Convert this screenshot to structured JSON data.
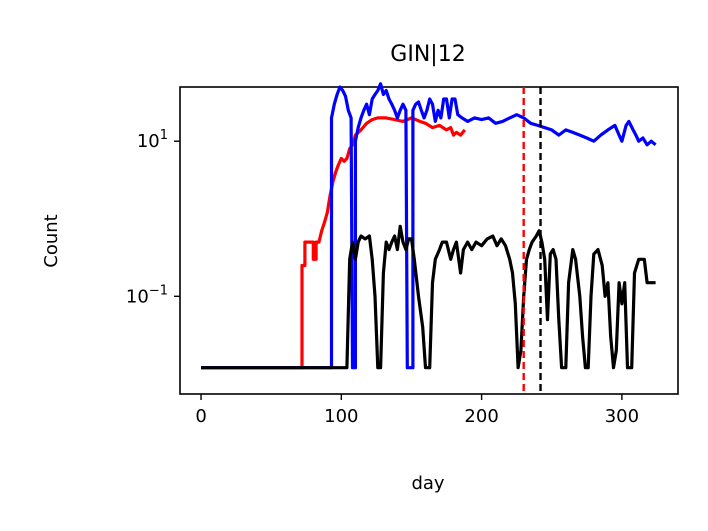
{
  "chart_data": {
    "type": "line",
    "title": "GIN|12",
    "xlabel": "day",
    "ylabel": "Count",
    "xlim": [
      -15,
      340
    ],
    "xticks": [
      0,
      100,
      200,
      300
    ],
    "yscale": "log",
    "ylim": [
      0.0055,
      50
    ],
    "yticks": [
      {
        "value": 10,
        "base": "10",
        "exp": "1"
      },
      {
        "value": 0.1,
        "base": "10",
        "exp": "−1"
      }
    ],
    "grid": false,
    "vlines": [
      {
        "x": 230,
        "color": "#ff0000",
        "style": "dashed"
      },
      {
        "x": 242,
        "color": "#000000",
        "style": "dashed"
      }
    ],
    "series": [
      {
        "color": "#ff0000",
        "points": [
          [
            0,
            0.012
          ],
          [
            72,
            0.012
          ],
          [
            72,
            0.25
          ],
          [
            74,
            0.25
          ],
          [
            74,
            0.5
          ],
          [
            80,
            0.5
          ],
          [
            80,
            0.3
          ],
          [
            82,
            0.3
          ],
          [
            82,
            0.5
          ],
          [
            84,
            0.5
          ],
          [
            86,
            0.7
          ],
          [
            88,
            0.9
          ],
          [
            90,
            1.2
          ],
          [
            92,
            2
          ],
          [
            94,
            3
          ],
          [
            96,
            4
          ],
          [
            98,
            5
          ],
          [
            100,
            6
          ],
          [
            102,
            5.5
          ],
          [
            104,
            6
          ],
          [
            106,
            8
          ],
          [
            108,
            9
          ],
          [
            110,
            12
          ],
          [
            114,
            14
          ],
          [
            118,
            17
          ],
          [
            122,
            19
          ],
          [
            126,
            20
          ],
          [
            132,
            20
          ],
          [
            138,
            19
          ],
          [
            144,
            18
          ],
          [
            150,
            20
          ],
          [
            156,
            18
          ],
          [
            160,
            17
          ],
          [
            165,
            15
          ],
          [
            170,
            16
          ],
          [
            175,
            14
          ],
          [
            178,
            15
          ],
          [
            180,
            12
          ],
          [
            182,
            13
          ],
          [
            185,
            12
          ],
          [
            188,
            14
          ]
        ]
      },
      {
        "color": "#0000ff",
        "points": [
          [
            0,
            0.012
          ],
          [
            93,
            0.012
          ],
          [
            93,
            20
          ],
          [
            95,
            30
          ],
          [
            97,
            40
          ],
          [
            99,
            50
          ],
          [
            101,
            45
          ],
          [
            103,
            38
          ],
          [
            105,
            25
          ],
          [
            107,
            20
          ],
          [
            108,
            0.012
          ],
          [
            110,
            0.012
          ],
          [
            110,
            10
          ],
          [
            112,
            15
          ],
          [
            114,
            20
          ],
          [
            116,
            25
          ],
          [
            118,
            30
          ],
          [
            120,
            22
          ],
          [
            122,
            35
          ],
          [
            124,
            40
          ],
          [
            126,
            45
          ],
          [
            128,
            55
          ],
          [
            130,
            40
          ],
          [
            132,
            45
          ],
          [
            134,
            35
          ],
          [
            136,
            30
          ],
          [
            138,
            25
          ],
          [
            140,
            20
          ],
          [
            142,
            25
          ],
          [
            144,
            30
          ],
          [
            146,
            25
          ],
          [
            147,
            0.012
          ],
          [
            151,
            0.012
          ],
          [
            151,
            25
          ],
          [
            153,
            30
          ],
          [
            155,
            32
          ],
          [
            157,
            25
          ],
          [
            159,
            20
          ],
          [
            161,
            25
          ],
          [
            163,
            35
          ],
          [
            165,
            30
          ],
          [
            167,
            18
          ],
          [
            169,
            25
          ],
          [
            171,
            20
          ],
          [
            173,
            35
          ],
          [
            175,
            35
          ],
          [
            177,
            20
          ],
          [
            179,
            35
          ],
          [
            181,
            35
          ],
          [
            183,
            22
          ],
          [
            186,
            20
          ],
          [
            190,
            18
          ],
          [
            195,
            20
          ],
          [
            200,
            19
          ],
          [
            205,
            20
          ],
          [
            210,
            17
          ],
          [
            215,
            18
          ],
          [
            220,
            20
          ],
          [
            225,
            22
          ],
          [
            230,
            20
          ],
          [
            235,
            17
          ],
          [
            240,
            16
          ],
          [
            245,
            15
          ],
          [
            250,
            14
          ],
          [
            255,
            12
          ],
          [
            260,
            14
          ],
          [
            265,
            13
          ],
          [
            270,
            12
          ],
          [
            275,
            11
          ],
          [
            280,
            10
          ],
          [
            285,
            12
          ],
          [
            290,
            14
          ],
          [
            295,
            16
          ],
          [
            298,
            12
          ],
          [
            300,
            10
          ],
          [
            303,
            16
          ],
          [
            305,
            18
          ],
          [
            308,
            14
          ],
          [
            310,
            12
          ],
          [
            312,
            10
          ],
          [
            315,
            11
          ],
          [
            318,
            9
          ],
          [
            321,
            10
          ],
          [
            324,
            9
          ]
        ]
      },
      {
        "color": "#000000",
        "points": [
          [
            0,
            0.012
          ],
          [
            104,
            0.012
          ],
          [
            106,
            0.3
          ],
          [
            108,
            0.5
          ],
          [
            110,
            0.3
          ],
          [
            112,
            0.5
          ],
          [
            114,
            0.6
          ],
          [
            117,
            0.55
          ],
          [
            120,
            0.6
          ],
          [
            122,
            0.3
          ],
          [
            124,
            0.1
          ],
          [
            126,
            0.012
          ],
          [
            128,
            0.012
          ],
          [
            130,
            0.2
          ],
          [
            132,
            0.5
          ],
          [
            134,
            0.4
          ],
          [
            136,
            0.5
          ],
          [
            138,
            0.6
          ],
          [
            140,
            0.4
          ],
          [
            142,
            0.8
          ],
          [
            144,
            0.5
          ],
          [
            146,
            0.4
          ],
          [
            148,
            0.55
          ],
          [
            150,
            0.55
          ],
          [
            152,
            0.3
          ],
          [
            155,
            0.1
          ],
          [
            158,
            0.04
          ],
          [
            160,
            0.012
          ],
          [
            163,
            0.012
          ],
          [
            165,
            0.15
          ],
          [
            167,
            0.3
          ],
          [
            170,
            0.4
          ],
          [
            172,
            0.5
          ],
          [
            175,
            0.5
          ],
          [
            178,
            0.3
          ],
          [
            180,
            0.4
          ],
          [
            182,
            0.5
          ],
          [
            185,
            0.2
          ],
          [
            187,
            0.4
          ],
          [
            190,
            0.5
          ],
          [
            193,
            0.4
          ],
          [
            196,
            0.5
          ],
          [
            200,
            0.45
          ],
          [
            204,
            0.55
          ],
          [
            208,
            0.6
          ],
          [
            211,
            0.45
          ],
          [
            214,
            0.55
          ],
          [
            217,
            0.45
          ],
          [
            220,
            0.3
          ],
          [
            222,
            0.2
          ],
          [
            224,
            0.08
          ],
          [
            226,
            0.012
          ],
          [
            228,
            0.02
          ],
          [
            230,
            0.1
          ],
          [
            232,
            0.3
          ],
          [
            234,
            0.4
          ],
          [
            236,
            0.5
          ],
          [
            239,
            0.6
          ],
          [
            241,
            0.7
          ],
          [
            243,
            0.5
          ],
          [
            245,
            0.3
          ],
          [
            247,
            0.05
          ],
          [
            249,
            0.35
          ],
          [
            251,
            0.4
          ],
          [
            253,
            0.3
          ],
          [
            255,
            0.05
          ],
          [
            257,
            0.012
          ],
          [
            260,
            0.012
          ],
          [
            262,
            0.15
          ],
          [
            265,
            0.4
          ],
          [
            267,
            0.3
          ],
          [
            270,
            0.1
          ],
          [
            272,
            0.03
          ],
          [
            274,
            0.012
          ],
          [
            276,
            0.012
          ],
          [
            278,
            0.1
          ],
          [
            280,
            0.35
          ],
          [
            283,
            0.4
          ],
          [
            286,
            0.25
          ],
          [
            288,
            0.1
          ],
          [
            290,
            0.15
          ],
          [
            292,
            0.03
          ],
          [
            294,
            0.012
          ],
          [
            296,
            0.02
          ],
          [
            298,
            0.15
          ],
          [
            300,
            0.08
          ],
          [
            302,
            0.15
          ],
          [
            304,
            0.012
          ],
          [
            307,
            0.012
          ],
          [
            309,
            0.2
          ],
          [
            312,
            0.3
          ],
          [
            316,
            0.3
          ],
          [
            318,
            0.15
          ],
          [
            324,
            0.15
          ]
        ]
      }
    ]
  }
}
